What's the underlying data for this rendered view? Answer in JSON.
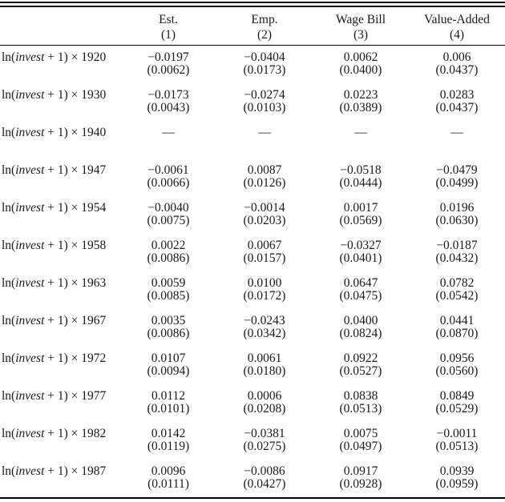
{
  "table": {
    "columns": [
      {
        "label": "Est.",
        "number": "(1)"
      },
      {
        "label": "Emp.",
        "number": "(2)"
      },
      {
        "label": "Wage Bill",
        "number": "(3)"
      },
      {
        "label": "Value-Added",
        "number": "(4)"
      }
    ],
    "row_label": {
      "prefix": "ln(",
      "variable": "invest",
      "suffix": " + 1) × "
    },
    "rows": [
      {
        "year": "1920",
        "cells": [
          {
            "coef": "−0.0197",
            "se": "(0.0062)"
          },
          {
            "coef": "−0.0404",
            "se": "(0.0173)"
          },
          {
            "coef": "0.0062",
            "se": "(0.0400)"
          },
          {
            "coef": "0.006",
            "se": "(0.0437)"
          }
        ]
      },
      {
        "year": "1930",
        "cells": [
          {
            "coef": "−0.0173",
            "se": "(0.0043)"
          },
          {
            "coef": "−0.0274",
            "se": "(0.0103)"
          },
          {
            "coef": "0.0223",
            "se": "(0.0389)"
          },
          {
            "coef": "0.0283",
            "se": "(0.0437)"
          }
        ]
      },
      {
        "year": "1940",
        "cells": [
          {
            "coef": "—",
            "se": ""
          },
          {
            "coef": "—",
            "se": ""
          },
          {
            "coef": "—",
            "se": ""
          },
          {
            "coef": "—",
            "se": ""
          }
        ]
      },
      {
        "year": "1947",
        "cells": [
          {
            "coef": "−0.0061",
            "se": "(0.0066)"
          },
          {
            "coef": "0.0087",
            "se": "(0.0126)"
          },
          {
            "coef": "−0.0518",
            "se": "(0.0444)"
          },
          {
            "coef": "−0.0479",
            "se": "(0.0499)"
          }
        ]
      },
      {
        "year": "1954",
        "cells": [
          {
            "coef": "−0.0040",
            "se": "(0.0075)"
          },
          {
            "coef": "−0.0014",
            "se": "(0.0203)"
          },
          {
            "coef": "0.0017",
            "se": "(0.0569)"
          },
          {
            "coef": "0.0196",
            "se": "(0.0630)"
          }
        ]
      },
      {
        "year": "1958",
        "cells": [
          {
            "coef": "0.0022",
            "se": "(0.0086)"
          },
          {
            "coef": "0.0067",
            "se": "(0.0157)"
          },
          {
            "coef": "−0.0327",
            "se": "(0.0401)"
          },
          {
            "coef": "−0.0187",
            "se": "(0.0432)"
          }
        ]
      },
      {
        "year": "1963",
        "cells": [
          {
            "coef": "0.0059",
            "se": "(0.0085)"
          },
          {
            "coef": "0.0100",
            "se": "(0.0172)"
          },
          {
            "coef": "0.0647",
            "se": "(0.0475)"
          },
          {
            "coef": "0.0782",
            "se": "(0.0542)"
          }
        ]
      },
      {
        "year": "1967",
        "cells": [
          {
            "coef": "0.0035",
            "se": "(0.0086)"
          },
          {
            "coef": "−0.0243",
            "se": "(0.0342)"
          },
          {
            "coef": "0.0400",
            "se": "(0.0824)"
          },
          {
            "coef": "0.0441",
            "se": "(0.0870)"
          }
        ]
      },
      {
        "year": "1972",
        "cells": [
          {
            "coef": "0.0107",
            "se": "(0.0094)"
          },
          {
            "coef": "0.0061",
            "se": "(0.0180)"
          },
          {
            "coef": "0.0922",
            "se": "(0.0527)"
          },
          {
            "coef": "0.0956",
            "se": "(0.0560)"
          }
        ]
      },
      {
        "year": "1977",
        "cells": [
          {
            "coef": "0.0112",
            "se": "(0.0101)"
          },
          {
            "coef": "0.0006",
            "se": "(0.0208)"
          },
          {
            "coef": "0.0838",
            "se": "(0.0513)"
          },
          {
            "coef": "0.0849",
            "se": "(0.0529)"
          }
        ]
      },
      {
        "year": "1982",
        "cells": [
          {
            "coef": "0.0142",
            "se": "(0.0119)"
          },
          {
            "coef": "−0.0381",
            "se": "(0.0275)"
          },
          {
            "coef": "0.0075",
            "se": "(0.0497)"
          },
          {
            "coef": "−0.0011",
            "se": "(0.0513)"
          }
        ]
      },
      {
        "year": "1987",
        "cells": [
          {
            "coef": "0.0096",
            "se": "(0.0111)"
          },
          {
            "coef": "−0.0086",
            "se": "(0.0427)"
          },
          {
            "coef": "0.0917",
            "se": "(0.0928)"
          },
          {
            "coef": "0.0939",
            "se": "(0.0959)"
          }
        ]
      }
    ],
    "colors": {
      "text": "#1a1a1a",
      "rule": "#000000",
      "background": "#ffffff"
    }
  }
}
